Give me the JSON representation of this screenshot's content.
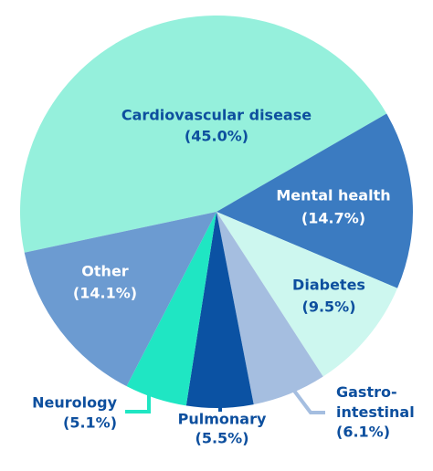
{
  "chart_data": {
    "type": "pie",
    "categories": [
      "Cardiovascular disease",
      "Mental health",
      "Diabetes",
      "Gastro-\nintestinal",
      "Pulmonary",
      "Neurology",
      "Other"
    ],
    "values": [
      45.0,
      14.7,
      9.5,
      6.1,
      5.5,
      5.1,
      14.1
    ],
    "value_labels": [
      "(45.0%)",
      "(14.7%)",
      "(9.5%)",
      "(6.1%)",
      "(5.5%)",
      "(5.1%)",
      "(14.1%)"
    ],
    "colors": [
      "#95f0dc",
      "#3b7bc1",
      "#cdf7ef",
      "#a5bee0",
      "#0b52a3",
      "#1fe6c3",
      "#6c9bd1"
    ],
    "startangle": -102
  }
}
